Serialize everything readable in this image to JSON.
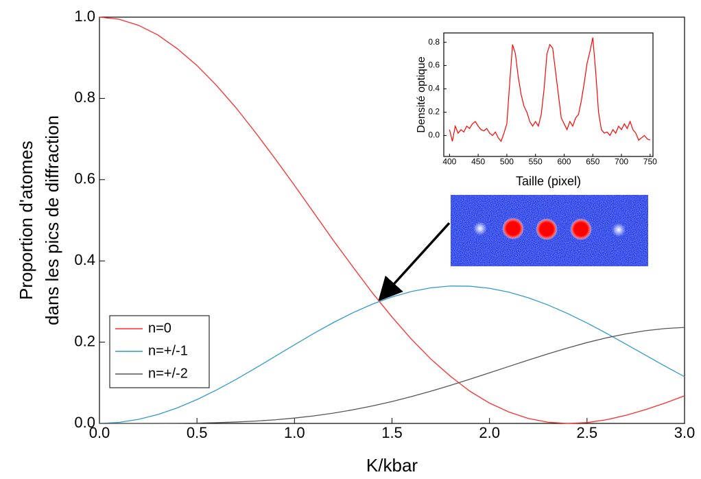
{
  "chart_data": [
    {
      "type": "line",
      "xlabel": "K/kbar",
      "ylabel": [
        "Proportion d'atomes",
        "dans les pics de diffraction"
      ],
      "x": [
        0,
        0.1,
        0.2,
        0.3,
        0.4,
        0.5,
        0.6,
        0.7,
        0.8,
        0.9,
        1.0,
        1.1,
        1.2,
        1.3,
        1.4,
        1.5,
        1.6,
        1.7,
        1.8,
        1.9,
        2.0,
        2.1,
        2.2,
        2.3,
        2.4,
        2.5,
        2.6,
        2.7,
        2.8,
        2.9,
        3.0
      ],
      "series": [
        {
          "name": "n=0",
          "color": "#ff2a2a",
          "values": [
            1,
            0.995,
            0.98,
            0.956,
            0.922,
            0.881,
            0.832,
            0.777,
            0.716,
            0.652,
            0.586,
            0.518,
            0.45,
            0.385,
            0.321,
            0.262,
            0.207,
            0.158,
            0.116,
            0.079,
            0.05,
            0.028,
            0.012,
            0.003,
            0.0,
            0.002,
            0.009,
            0.02,
            0.034,
            0.05,
            0.068
          ]
        },
        {
          "name": "n=+/-1",
          "color": "#3399cc",
          "values": [
            0,
            0.0025,
            0.0099,
            0.022,
            0.0384,
            0.0587,
            0.0822,
            0.1082,
            0.136,
            0.1648,
            0.1936,
            0.2218,
            0.2483,
            0.2725,
            0.2937,
            0.3113,
            0.3248,
            0.3338,
            0.3382,
            0.3377,
            0.3326,
            0.323,
            0.3091,
            0.2915,
            0.2706,
            0.2471,
            0.2217,
            0.195,
            0.1679,
            0.1409,
            0.115
          ]
        },
        {
          "name": "n=+/-2",
          "color": "#555555",
          "values": [
            0,
            0.0,
            0.0,
            0.0001,
            0.0004,
            0.0009,
            0.0019,
            0.0035,
            0.0057,
            0.0089,
            0.0132,
            0.0186,
            0.0254,
            0.0335,
            0.043,
            0.0539,
            0.066,
            0.0794,
            0.0937,
            0.1089,
            0.1245,
            0.1403,
            0.1561,
            0.1713,
            0.1857,
            0.199,
            0.2107,
            0.2205,
            0.2282,
            0.2335,
            0.2363
          ]
        }
      ],
      "xlim": [
        0,
        3
      ],
      "ylim": [
        0,
        1
      ],
      "xticks": [
        {
          "value": 0,
          "label": "0.0"
        },
        0.5,
        {
          "value": 1,
          "label": "1.0"
        },
        1.5,
        {
          "value": 2,
          "label": "2.0"
        },
        2.5,
        {
          "value": 3,
          "label": "3.0"
        }
      ],
      "yticks": [
        {
          "value": 0,
          "label": "0.0"
        },
        0.2,
        0.4,
        0.6,
        0.8,
        {
          "value": 1,
          "label": "1.0"
        }
      ],
      "legend": "lower left"
    },
    {
      "type": "line",
      "xlabel": "Taille (pixel)",
      "ylabel": [
        "Densité optique"
      ],
      "x": [
        400,
        405,
        410,
        415,
        420,
        425,
        430,
        435,
        440,
        445,
        450,
        455,
        460,
        465,
        470,
        475,
        480,
        485,
        490,
        495,
        500,
        505,
        510,
        515,
        520,
        525,
        530,
        535,
        540,
        545,
        550,
        555,
        560,
        565,
        570,
        575,
        580,
        585,
        590,
        595,
        600,
        605,
        610,
        615,
        620,
        625,
        630,
        635,
        640,
        645,
        650,
        655,
        660,
        665,
        670,
        675,
        680,
        685,
        690,
        695,
        700,
        705,
        710,
        715,
        720,
        725,
        730,
        735,
        740,
        745,
        750
      ],
      "series": [
        {
          "color": "#ff0000",
          "values": [
            0.05,
            -0.05,
            0.08,
            0.02,
            0.05,
            0.03,
            0.08,
            0.06,
            0.1,
            0.12,
            0.08,
            0.05,
            0.04,
            0.06,
            0.02,
            0.0,
            0.03,
            -0.02,
            -0.05,
            0.02,
            0.1,
            0.45,
            0.78,
            0.7,
            0.5,
            0.35,
            0.25,
            0.2,
            0.12,
            0.08,
            0.12,
            0.08,
            0.18,
            0.4,
            0.7,
            0.78,
            0.75,
            0.55,
            0.35,
            0.15,
            0.1,
            0.05,
            0.12,
            0.08,
            0.15,
            0.18,
            0.3,
            0.45,
            0.62,
            0.72,
            0.84,
            0.55,
            0.2,
            0.05,
            0.02,
            0.03,
            0.0,
            0.05,
            0.02,
            0.08,
            0.05,
            0.1,
            0.06,
            0.12,
            0.05,
            0.02,
            -0.04,
            -0.02,
            0.0,
            -0.03,
            -0.04
          ]
        }
      ],
      "xlim": [
        390,
        755
      ],
      "ylim": [
        -0.18,
        0.88
      ],
      "xticks": [
        400,
        450,
        500,
        550,
        600,
        650,
        700,
        750
      ],
      "yticks": [
        {
          "value": 0,
          "label": "0.0"
        },
        0.2,
        0.4,
        0.6,
        0.8
      ]
    }
  ]
}
